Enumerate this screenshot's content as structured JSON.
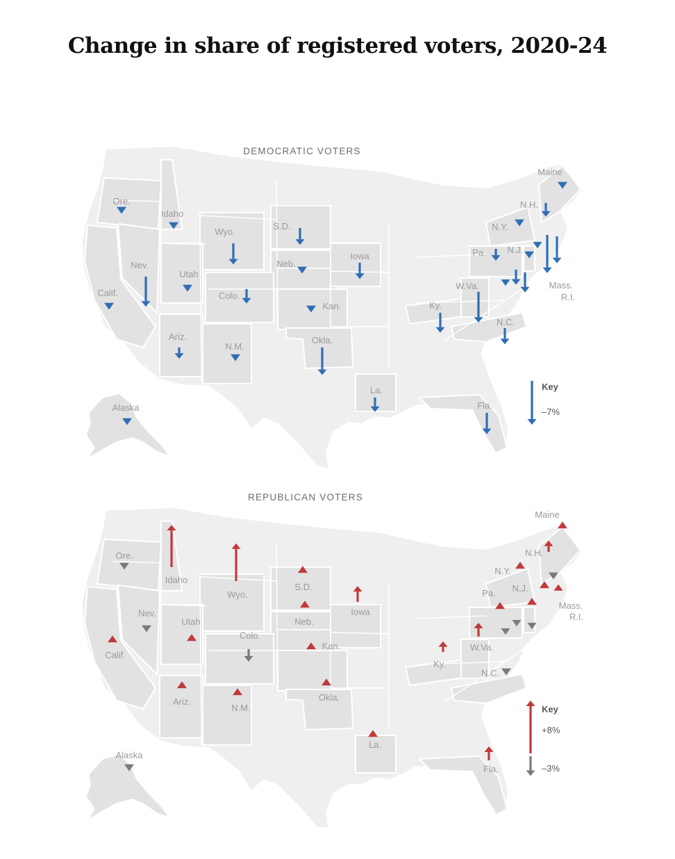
{
  "title": "Change in share of registered voters, 2020-24",
  "colors": {
    "democratic": "#2f6eb5",
    "republican_gain": "#c0393b",
    "republican_loss": "#7a7a7a",
    "highlight_state": "#e2e2e2",
    "background_state": "#efefef"
  },
  "maps": [
    {
      "id": "dem",
      "panel_title": "DEMOCRATIC VOTERS",
      "key_title": "Key",
      "key_items": [
        {
          "label": "–7%",
          "value": -7,
          "direction": "down",
          "color": "#2f6eb5"
        }
      ],
      "states": [
        {
          "label": "Ore.",
          "value": -1.2
        },
        {
          "label": "Idaho",
          "value": -1.0
        },
        {
          "label": "Wyo.",
          "value": -3.4
        },
        {
          "label": "S.D.",
          "value": -2.7
        },
        {
          "label": "Maine",
          "value": -0.8
        },
        {
          "label": "N.H.",
          "value": -2.2
        },
        {
          "label": "N.Y.",
          "value": -0.9
        },
        {
          "label": "Pa.",
          "value": -1.9
        },
        {
          "label": "N.J.",
          "value": -1.1
        },
        {
          "label": "Nev.",
          "value": -4.8
        },
        {
          "label": "Utah",
          "value": -0.7
        },
        {
          "label": "Neb.",
          "value": -1.4
        },
        {
          "label": "Iowa",
          "value": -2.6
        },
        {
          "label": "Calif.",
          "value": -0.6
        },
        {
          "label": "Colo.",
          "value": -2.3
        },
        {
          "label": "Kan.",
          "value": -0.6
        },
        {
          "label": "W.Va.",
          "value": -4.9
        },
        {
          "label": "Ky.",
          "value": -3.2
        },
        {
          "label": "Mass.",
          "value": -6.1
        },
        {
          "label": "R.I.",
          "value": -4.3
        },
        {
          "label": "N.C.",
          "value": -2.6
        },
        {
          "label": "Ariz.",
          "value": -1.8
        },
        {
          "label": "N.M.",
          "value": -1.5
        },
        {
          "label": "Okla.",
          "value": -4.4
        },
        {
          "label": "La.",
          "value": -2.3
        },
        {
          "label": "Fla.",
          "value": -3.4
        },
        {
          "label": "Alaska",
          "value": -0.6
        }
      ]
    },
    {
      "id": "rep",
      "panel_title": "REPUBLICAN VOTERS",
      "key_title": "Key",
      "key_items": [
        {
          "label": "+8%",
          "value": 8,
          "direction": "up",
          "color": "#c0393b"
        },
        {
          "label": "–3%",
          "value": -3,
          "direction": "down",
          "color": "#7a7a7a"
        }
      ],
      "states": [
        {
          "label": "Maine",
          "value": 0.6
        },
        {
          "label": "Idaho",
          "value": 6.4
        },
        {
          "label": "Wyo.",
          "value": 5.7
        },
        {
          "label": "S.D.",
          "value": 1.0
        },
        {
          "label": "Ore.",
          "value": -0.6
        },
        {
          "label": "N.H.",
          "value": 1.7
        },
        {
          "label": "N.Y.",
          "value": 0.6
        },
        {
          "label": "N.J.",
          "value": 0.6
        },
        {
          "label": "Mass.",
          "value": 0.6
        },
        {
          "label": "R.I.",
          "value": -0.6
        },
        {
          "label": "Pa.",
          "value": 0.8
        },
        {
          "label": "Iowa",
          "value": 2.4
        },
        {
          "label": "Neb.",
          "value": 0.6
        },
        {
          "label": "Nev.",
          "value": -1.2
        },
        {
          "label": "Utah",
          "value": 0.6
        },
        {
          "label": "Calif.",
          "value": 0.6
        },
        {
          "label": "Colo.",
          "value": -1.9
        },
        {
          "label": "Kan.",
          "value": 0.6
        },
        {
          "label": "W.Va.",
          "value": 2.1
        },
        {
          "label": "Ky.",
          "value": 1.6
        },
        {
          "label": "N.C.",
          "value": -0.6
        },
        {
          "label": "Okla.",
          "value": 1.4
        },
        {
          "label": "Ariz.",
          "value": 0.6
        },
        {
          "label": "N.M.",
          "value": 0.6
        },
        {
          "label": "La.",
          "value": 1.0
        },
        {
          "label": "Fla.",
          "value": 2.1
        },
        {
          "label": "Alaska",
          "value": -0.6
        }
      ]
    }
  ]
}
